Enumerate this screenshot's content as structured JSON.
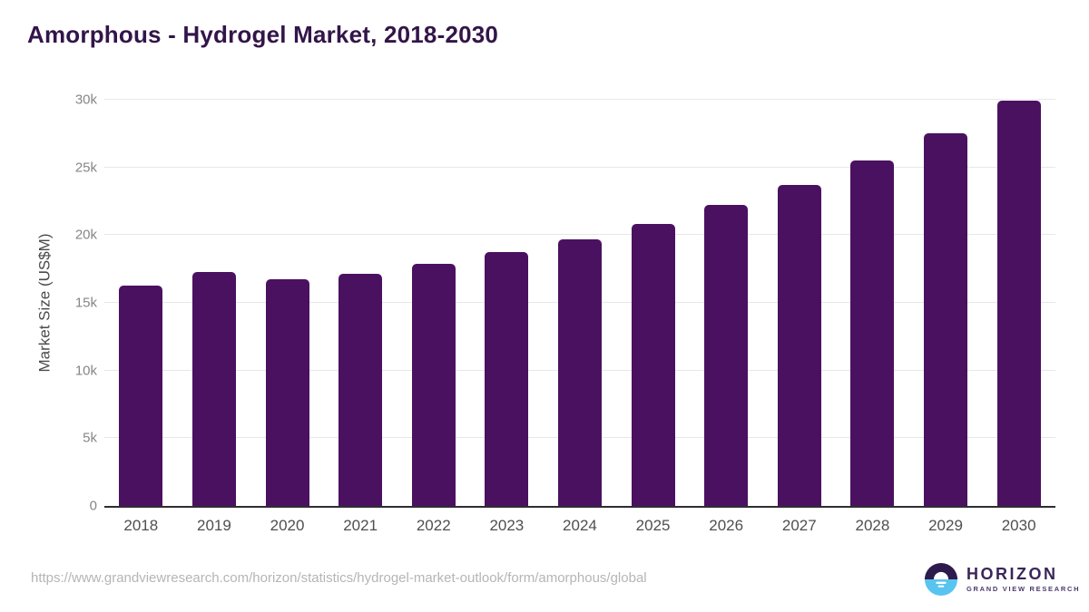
{
  "page": {
    "title": "Amorphous - Hydrogel Market, 2018-2030"
  },
  "chart_data": {
    "type": "bar",
    "title": "Amorphous - Hydrogel Market, 2018-2030",
    "categories": [
      "2018",
      "2019",
      "2020",
      "2021",
      "2022",
      "2023",
      "2024",
      "2025",
      "2026",
      "2027",
      "2028",
      "2029",
      "2030"
    ],
    "values": [
      16250,
      17300,
      16750,
      17150,
      17900,
      18750,
      19700,
      20850,
      22200,
      23700,
      25500,
      27550,
      29950
    ],
    "xlabel": "",
    "ylabel": "Market Size (US$M)",
    "ylim": [
      0,
      30000
    ],
    "yticks": [
      {
        "value": 0,
        "label": "0"
      },
      {
        "value": 5000,
        "label": "5k"
      },
      {
        "value": 10000,
        "label": "10k"
      },
      {
        "value": 15000,
        "label": "15k"
      },
      {
        "value": 20000,
        "label": "20k"
      },
      {
        "value": 25000,
        "label": "25k"
      },
      {
        "value": 30000,
        "label": "30k"
      }
    ],
    "grid": true,
    "legend_position": "none",
    "bar_color": "#4b1161"
  },
  "footer": {
    "source_url": "https://www.grandviewresearch.com/horizon/statistics/hydrogel-market-outlook/form/amorphous/global",
    "logo_text": "HORIZON",
    "logo_subtext": "GRAND VIEW RESEARCH"
  },
  "colors": {
    "title_text": "#331549",
    "bar_fill": "#4b1161",
    "y_axis_title": "#4a4a4a",
    "y_tick_label": "#868686",
    "x_tick_label": "#4f4f4f",
    "gridline": "#e7e7e7",
    "axis_line": "#2f2d33",
    "source_url_text": "#b5b5b5",
    "logo_purple": "#2d1b4e",
    "logo_blue": "#59c4f0",
    "logo_text_color": "#3a2658"
  }
}
